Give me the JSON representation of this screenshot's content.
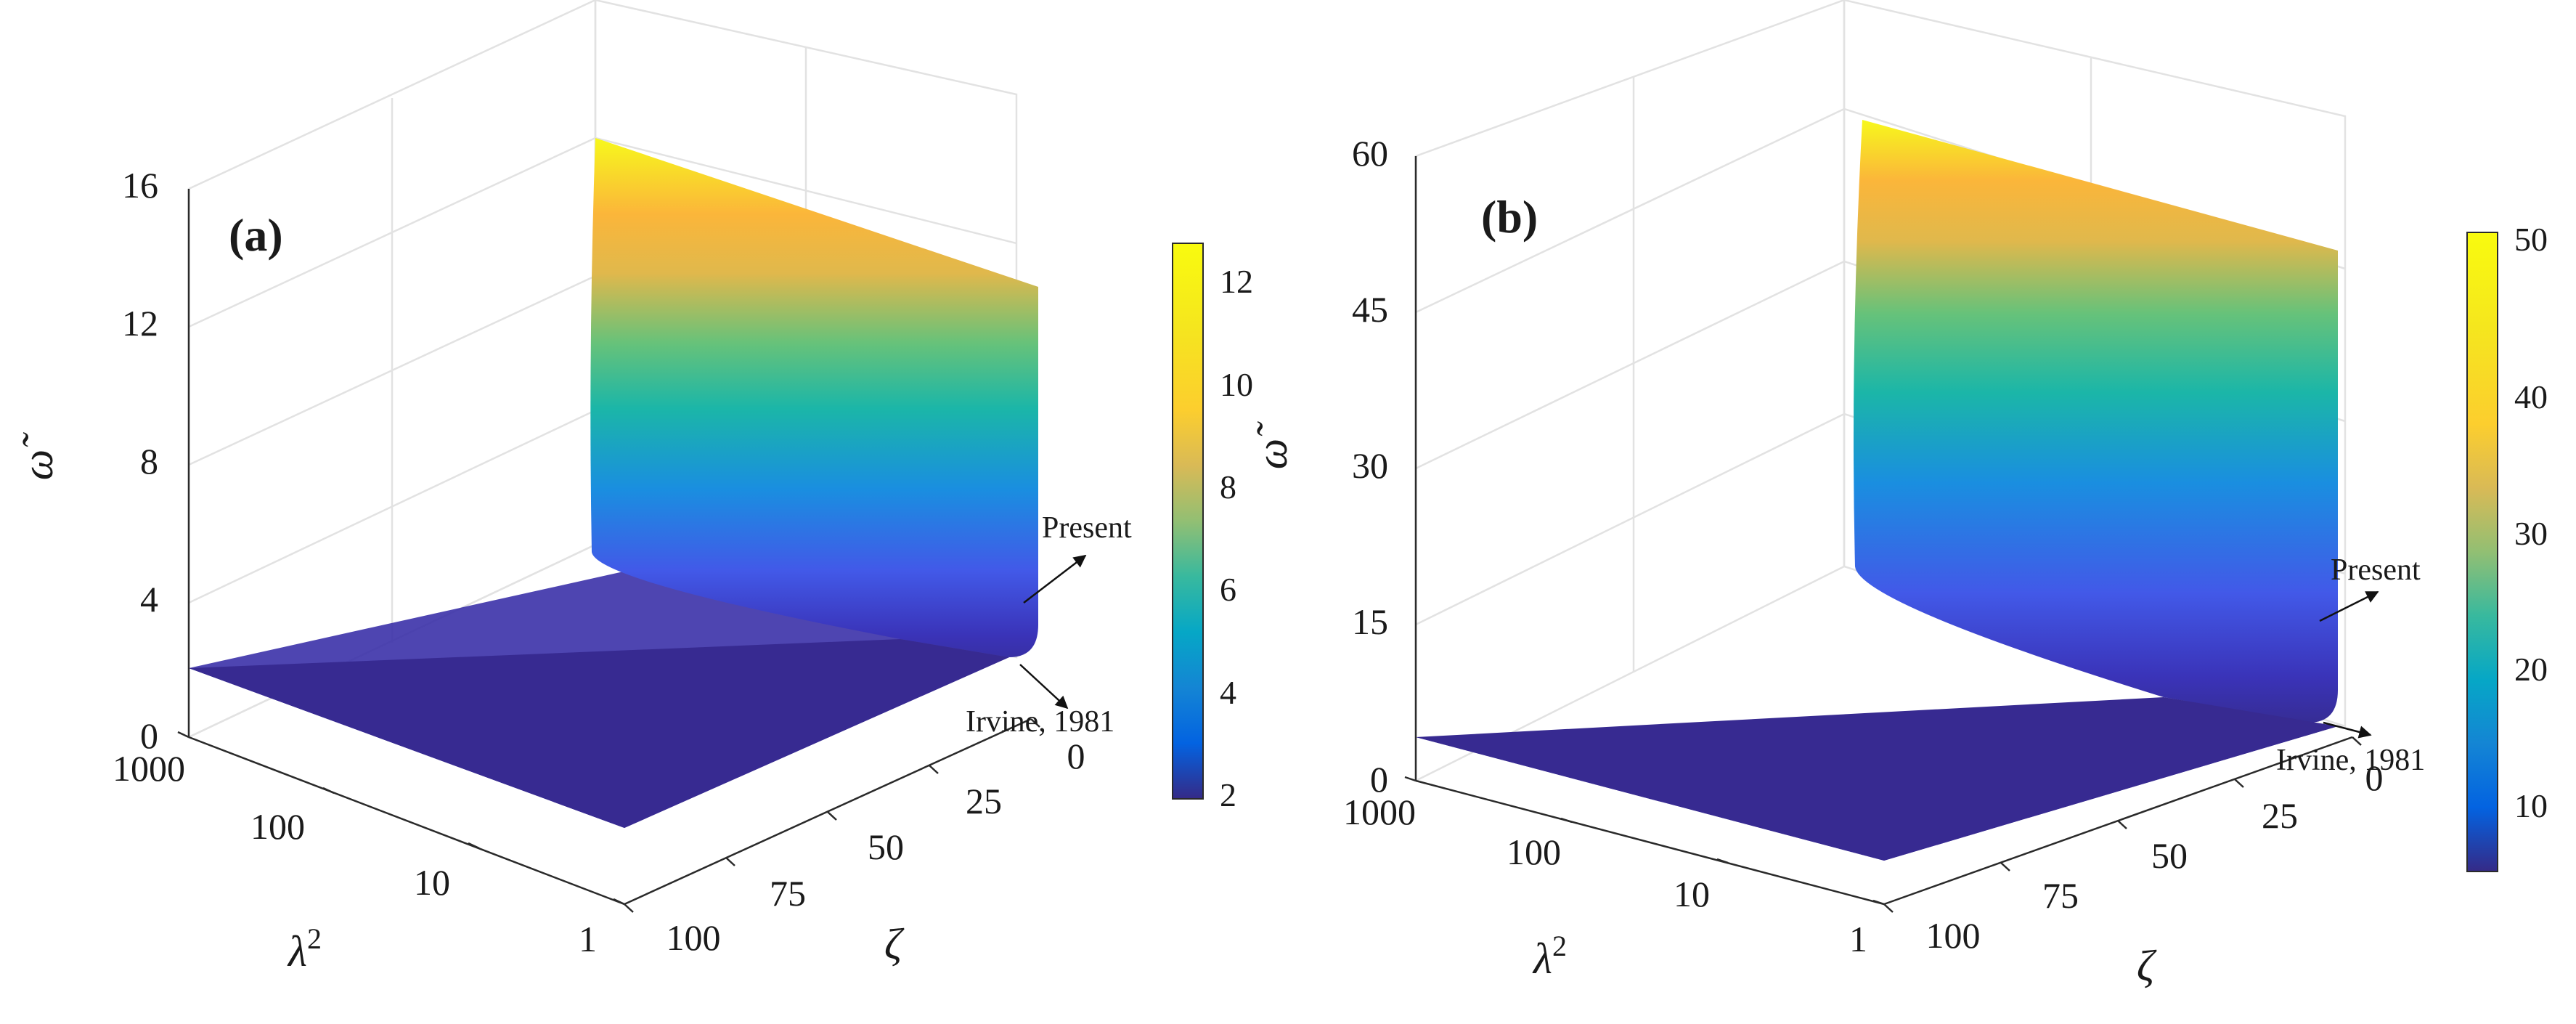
{
  "chart_data": [
    {
      "type": "surface",
      "panel_label": "(a)",
      "zlabel": "ω̃",
      "xlabel": "λ²",
      "ylabel": "ζ",
      "zlim": [
        0,
        16
      ],
      "z_ticks": [
        "0",
        "4",
        "8",
        "12",
        "16"
      ],
      "lambda2_ticks": [
        "1",
        "10",
        "100",
        "1000"
      ],
      "zeta_ticks": [
        "0",
        "25",
        "50",
        "75",
        "100"
      ],
      "colorbar": {
        "range": [
          2,
          12.8
        ],
        "ticks": [
          "2",
          "4",
          "6",
          "8",
          "10",
          "12"
        ]
      },
      "surface": {
        "base_value": 2.0,
        "max_value": 12.8,
        "description_rise": "rises steeply as ζ approaches 0"
      },
      "annotations": [
        {
          "label": "Present"
        },
        {
          "label": "Irvine, 1981"
        }
      ]
    },
    {
      "type": "surface",
      "panel_label": "(b)",
      "zlabel": "ω̃",
      "xlabel": "λ²",
      "ylabel": "ζ",
      "zlim": [
        0,
        60
      ],
      "z_ticks": [
        "0",
        "15",
        "30",
        "45",
        "60"
      ],
      "lambda2_ticks": [
        "1",
        "10",
        "100",
        "1000"
      ],
      "zeta_ticks": [
        "0",
        "25",
        "50",
        "75",
        "100"
      ],
      "colorbar": {
        "range": [
          4,
          51
        ],
        "ticks": [
          "10",
          "20",
          "30",
          "40",
          "50"
        ]
      },
      "surface": {
        "base_value": 4.0,
        "max_value": 51,
        "description_rise": "rises steeply as ζ approaches 0"
      },
      "annotations": [
        {
          "label": "Present"
        },
        {
          "label": "Irvine, 1981"
        }
      ]
    }
  ]
}
